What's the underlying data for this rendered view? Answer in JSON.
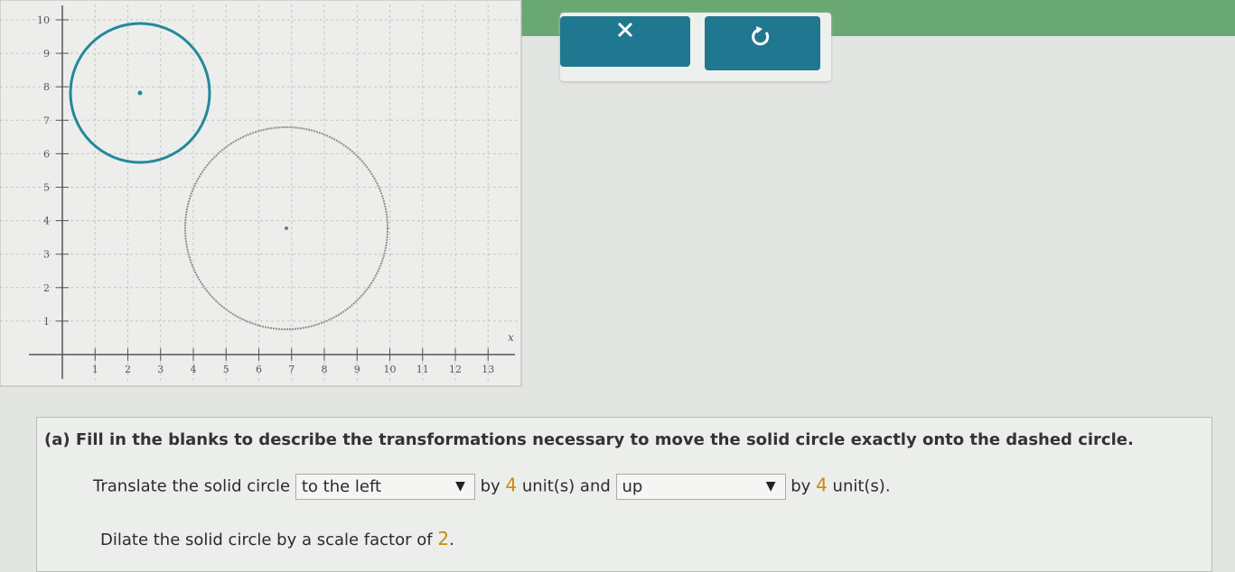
{
  "graph": {
    "x_tick_labels": [
      1,
      2,
      3,
      4,
      5,
      6,
      7,
      8,
      9,
      10,
      11,
      12,
      13
    ],
    "y_tick_labels": [
      1,
      2,
      3,
      4,
      5,
      6,
      7,
      8,
      9,
      10
    ],
    "x_axis_label": "x"
  },
  "question": {
    "label": "(a)",
    "prompt": "Fill in the blanks to describe the transformations necessary to move the solid circle exactly onto the dashed circle.",
    "translate": {
      "lead": "Translate the solid circle",
      "direction_1": "to the left",
      "by_1": "by",
      "amount_1": 4,
      "mid": "unit(s) and",
      "direction_2": "up",
      "by_2": "by",
      "amount_2": 4,
      "tail": "unit(s)."
    },
    "dilate": {
      "lead": "Dilate the solid circle by a scale factor of",
      "factor": 2,
      "tail": "."
    }
  }
}
